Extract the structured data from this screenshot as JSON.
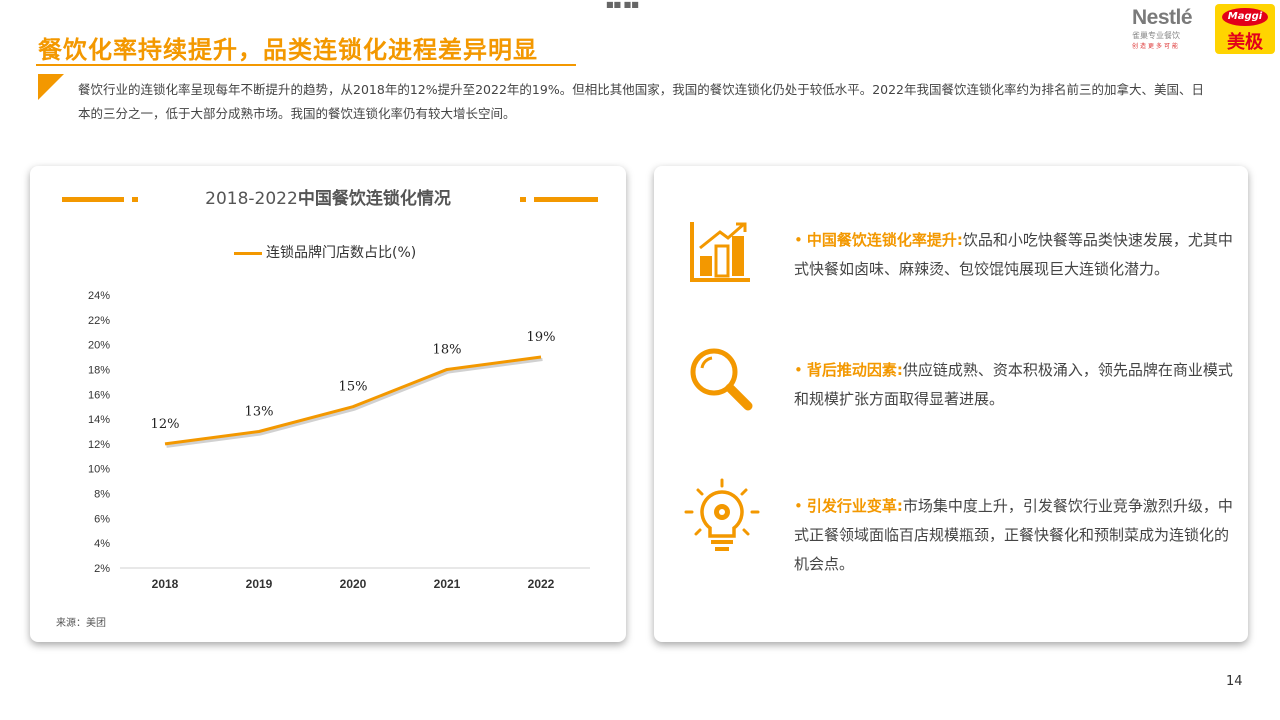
{
  "page": {
    "title": "餐饮化率持续提升，品类连锁化进程差异明显",
    "intro": "餐饮行业的连锁化率呈现每年不断提升的趋势，从2018年的12%提升至2022年的19%。但相比其他国家，我国的餐饮连锁化仍处于较低水平。2022年我国餐饮连锁化率约为排名前三的加拿大、美国、日本的三分之一，低于大部分成熟市场。我国的餐饮连锁化率仍有较大增长空间。",
    "page_number": "14",
    "top_mark": "■■  ■■"
  },
  "logos": {
    "nestle_brand": "Nestlé",
    "nestle_sub": "雀巢专业餐饮",
    "nestle_sub2": "创造更多可能",
    "maggi_brand": "Maggi",
    "maggi_cn": "美极"
  },
  "colors": {
    "accent": "#f39800",
    "text": "#444444",
    "maggi_red": "#e2001a",
    "maggi_yellow": "#ffd400"
  },
  "chart_panel": {
    "title_prefix": "2018-2022",
    "title_bold": "中国餐饮连锁化情况",
    "legend_label": "连锁品牌门店数占比(%)",
    "source": "来源：美团"
  },
  "chart_data": {
    "type": "line",
    "title": "2018-2022中国餐饮连锁化情况",
    "categories": [
      "2018",
      "2019",
      "2020",
      "2021",
      "2022"
    ],
    "series": [
      {
        "name": "连锁品牌门店数占比(%)",
        "values": [
          12,
          13,
          15,
          18,
          19
        ]
      }
    ],
    "data_labels": [
      "12%",
      "13%",
      "15%",
      "18%",
      "19%"
    ],
    "y_ticks": [
      "2%",
      "4%",
      "6%",
      "8%",
      "10%",
      "12%",
      "14%",
      "16%",
      "18%",
      "20%",
      "22%",
      "24%"
    ],
    "ylim": [
      2,
      24
    ],
    "xlabel": "",
    "ylabel": "",
    "grid": false,
    "legend_position": "top",
    "color": "#f39800"
  },
  "insights": [
    {
      "icon": "bar-chart-growth-icon",
      "highlight": "中国餐饮连锁化率提升:",
      "text": "饮品和小吃快餐等品类快速发展，尤其中式快餐如卤味、麻辣烫、包饺馄饨展现巨大连锁化潜力。"
    },
    {
      "icon": "magnifier-icon",
      "highlight": "背后推动因素:",
      "text": "供应链成熟、资本积极涌入，领先品牌在商业模式和规模扩张方面取得显著进展。"
    },
    {
      "icon": "lightbulb-gear-icon",
      "highlight": "引发行业变革:",
      "text": "市场集中度上升，引发餐饮行业竞争激烈升级，中式正餐领域面临百店规模瓶颈，正餐快餐化和预制菜成为连锁化的机会点。"
    }
  ],
  "bullet_symbol": "•"
}
